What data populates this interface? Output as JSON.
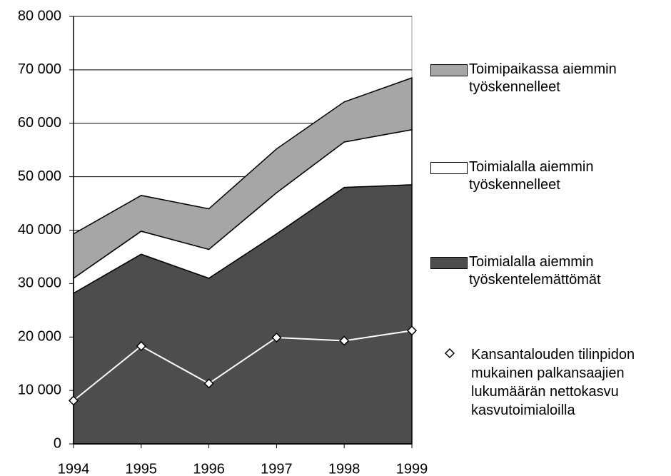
{
  "chart_data": {
    "type": "stacked_area",
    "x": [
      1994,
      1995,
      1996,
      1997,
      1998,
      1999
    ],
    "xlim": [
      1994,
      1999
    ],
    "ylim": [
      0,
      80000
    ],
    "yticks": [
      0,
      {
        "value": 10000,
        "label": "10 000"
      },
      {
        "value": 20000,
        "label": "20 000"
      },
      {
        "value": 30000,
        "label": "30 000"
      },
      {
        "value": 40000,
        "label": "40 000"
      },
      {
        "value": 50000,
        "label": "50 000"
      },
      {
        "value": 60000,
        "label": "60 000"
      },
      {
        "value": 70000,
        "label": "70 000"
      },
      {
        "value": 80000,
        "label": "80 000"
      }
    ],
    "grid": true,
    "legend": "right",
    "series": [
      {
        "name": "Toimialalla aiemmin työskentelemättömät",
        "color": "#4d4d4d",
        "values": [
          28200,
          35500,
          31000,
          39300,
          48000,
          48500
        ]
      },
      {
        "name": "Toimialalla aiemmin työskennelleet",
        "color": "#ffffff",
        "values": [
          2800,
          4300,
          5400,
          7700,
          8500,
          10300
        ]
      },
      {
        "name": "Toimipaikassa aiemmin työskennelleet",
        "color": "#a6a6a6",
        "values": [
          8300,
          6700,
          7600,
          8200,
          7500,
          9700
        ]
      },
      {
        "name": "Kansantalouden tilinpidon mukainen palkansaajien lukumäärän nettokasvu kasvutoimialoilla",
        "color": "#ffffff",
        "type": "line",
        "values": [
          8100,
          18300,
          11300,
          19900,
          19300,
          21200
        ]
      }
    ]
  }
}
